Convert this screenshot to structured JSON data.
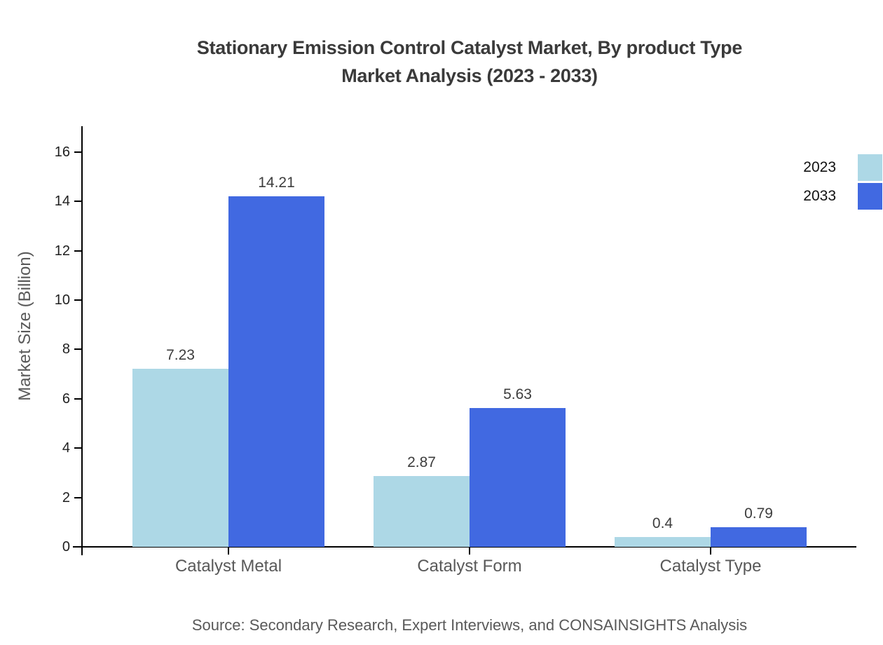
{
  "title": {
    "line1": "Stationary Emission Control Catalyst Market, By product Type",
    "line2": "Market Analysis (2023 - 2033)"
  },
  "source": "Source: Secondary Research, Expert Interviews, and CONSAINSIGHTS Analysis",
  "chart_data": {
    "type": "bar",
    "categories": [
      "Catalyst Metal",
      "Catalyst Form",
      "Catalyst Type"
    ],
    "series": [
      {
        "name": "2023",
        "color": "#ADD8E6",
        "values": [
          7.23,
          2.87,
          0.4
        ]
      },
      {
        "name": "2033",
        "color": "#4169E1",
        "values": [
          14.21,
          5.63,
          0.79
        ]
      }
    ],
    "title": "Stationary Emission Control Catalyst Market, By product Type Market Analysis (2023 - 2033)",
    "xlabel": "",
    "ylabel": "Market Size (Billion)",
    "ylim": [
      0,
      17.05
    ],
    "yticks": [
      0,
      2,
      4,
      6,
      8,
      10,
      12,
      14,
      16
    ],
    "grid": false,
    "legend_position": "top-right",
    "value_labels": true
  },
  "colors": {
    "bar_2023": "#ADD8E6",
    "bar_2033": "#4169E1",
    "axis": "#000000",
    "title_text": "#3a3a3a",
    "tick_text": "#1f1f1f",
    "muted_text": "#595959",
    "value_text": "#3d3d3d"
  }
}
